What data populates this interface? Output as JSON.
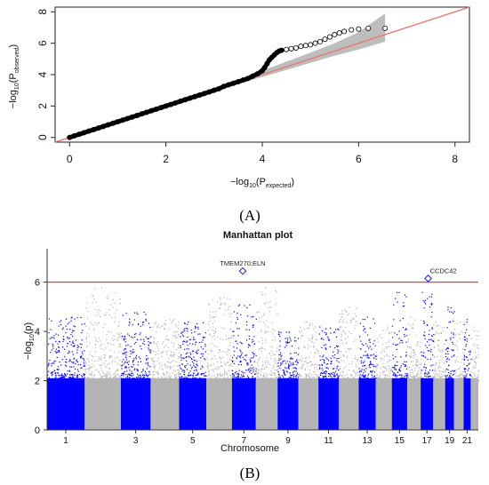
{
  "chart_data": [
    {
      "type": "scatter",
      "panel": "(A)",
      "xlabel_main": "−log",
      "xlabel_sub10": "10",
      "xlabel_paren_open": "(P",
      "xlabel_subscript": "expected",
      "xlabel_paren_close": ")",
      "ylabel_main": "−log",
      "ylabel_sub10": "10",
      "ylabel_paren_open": "(P",
      "ylabel_subscript": "observed",
      "ylabel_paren_close": ")",
      "xlim": [
        -0.3,
        8.3
      ],
      "ylim": [
        -0.3,
        8.3
      ],
      "xticks": [
        0,
        2,
        4,
        6,
        8
      ],
      "yticks": [
        0,
        2,
        4,
        6,
        8
      ],
      "reference_line": {
        "slope": 1,
        "intercept": 0,
        "color": "#f07070"
      },
      "confidence_band_color": "#bdbdbd",
      "points": [
        [
          0.0,
          0.0
        ],
        [
          0.1,
          0.1
        ],
        [
          0.2,
          0.2
        ],
        [
          0.3,
          0.3
        ],
        [
          0.4,
          0.4
        ],
        [
          0.5,
          0.5
        ],
        [
          0.6,
          0.6
        ],
        [
          0.7,
          0.7
        ],
        [
          0.8,
          0.8
        ],
        [
          0.9,
          0.9
        ],
        [
          1.0,
          1.0
        ],
        [
          1.1,
          1.1
        ],
        [
          1.2,
          1.2
        ],
        [
          1.3,
          1.3
        ],
        [
          1.4,
          1.4
        ],
        [
          1.5,
          1.5
        ],
        [
          1.6,
          1.6
        ],
        [
          1.7,
          1.7
        ],
        [
          1.8,
          1.8
        ],
        [
          1.9,
          1.9
        ],
        [
          2.0,
          2.0
        ],
        [
          2.1,
          2.1
        ],
        [
          2.2,
          2.2
        ],
        [
          2.3,
          2.3
        ],
        [
          2.4,
          2.4
        ],
        [
          2.5,
          2.5
        ],
        [
          2.6,
          2.6
        ],
        [
          2.7,
          2.7
        ],
        [
          2.8,
          2.8
        ],
        [
          2.9,
          2.9
        ],
        [
          3.0,
          3.0
        ],
        [
          3.1,
          3.1
        ],
        [
          3.2,
          3.25
        ],
        [
          3.3,
          3.35
        ],
        [
          3.4,
          3.45
        ],
        [
          3.5,
          3.55
        ],
        [
          3.6,
          3.65
        ],
        [
          3.7,
          3.75
        ],
        [
          3.8,
          3.9
        ],
        [
          3.9,
          4.05
        ],
        [
          4.0,
          4.25
        ],
        [
          4.05,
          4.45
        ],
        [
          4.1,
          4.7
        ],
        [
          4.15,
          4.95
        ],
        [
          4.2,
          5.1
        ],
        [
          4.25,
          5.25
        ],
        [
          4.3,
          5.4
        ],
        [
          4.35,
          5.5
        ],
        [
          4.4,
          5.55
        ],
        [
          4.5,
          5.6
        ],
        [
          4.6,
          5.65
        ],
        [
          4.7,
          5.7
        ],
        [
          4.8,
          5.8
        ],
        [
          4.9,
          5.85
        ],
        [
          5.0,
          5.9
        ],
        [
          5.1,
          6.0
        ],
        [
          5.2,
          6.1
        ],
        [
          5.3,
          6.25
        ],
        [
          5.4,
          6.4
        ],
        [
          5.5,
          6.55
        ],
        [
          5.6,
          6.65
        ],
        [
          5.7,
          6.75
        ],
        [
          5.85,
          6.85
        ],
        [
          6.0,
          6.9
        ],
        [
          6.2,
          6.95
        ],
        [
          6.55,
          6.95
        ]
      ],
      "band_upper": [
        [
          3.0,
          3.05
        ],
        [
          4.0,
          4.25
        ],
        [
          5.0,
          5.4
        ],
        [
          5.5,
          6.0
        ],
        [
          6.0,
          6.7
        ],
        [
          6.55,
          7.9
        ]
      ],
      "band_lower": [
        [
          3.0,
          2.95
        ],
        [
          4.0,
          3.85
        ],
        [
          5.0,
          4.75
        ],
        [
          5.5,
          5.2
        ],
        [
          6.0,
          5.6
        ],
        [
          6.55,
          6.1
        ]
      ]
    },
    {
      "type": "manhattan",
      "panel": "(B)",
      "title": "Manhattan plot",
      "xlabel": "Chromosome",
      "ylabel_main": "−log",
      "ylabel_sub10": "10",
      "ylabel_paren": "(p)",
      "ylim": [
        0,
        7.5
      ],
      "yticks": [
        0,
        2,
        4,
        6
      ],
      "xtick_labels": [
        "1",
        "3",
        "5",
        "7",
        "9",
        "11",
        "13",
        "15",
        "17",
        "19",
        "21"
      ],
      "significance_threshold": 6,
      "threshold_color": "#ee3b3b",
      "series_colors": {
        "odd": "#0000ff",
        "even": "#b4b4b4"
      },
      "chromosomes": [
        {
          "chr": 1,
          "max": 4.6
        },
        {
          "chr": 2,
          "max": 5.8
        },
        {
          "chr": 3,
          "max": 4.8
        },
        {
          "chr": 4,
          "max": 4.5
        },
        {
          "chr": 5,
          "max": 4.4
        },
        {
          "chr": 6,
          "max": 5.4
        },
        {
          "chr": 7,
          "max": 5.1
        },
        {
          "chr": 8,
          "max": 5.8
        },
        {
          "chr": 9,
          "max": 4.0
        },
        {
          "chr": 10,
          "max": 4.4
        },
        {
          "chr": 11,
          "max": 4.2
        },
        {
          "chr": 12,
          "max": 5.0
        },
        {
          "chr": 13,
          "max": 4.6
        },
        {
          "chr": 14,
          "max": 4.2
        },
        {
          "chr": 15,
          "max": 5.6
        },
        {
          "chr": 16,
          "max": 4.6
        },
        {
          "chr": 17,
          "max": 5.6
        },
        {
          "chr": 18,
          "max": 4.4
        },
        {
          "chr": 19,
          "max": 5.0
        },
        {
          "chr": 20,
          "max": 4.4
        },
        {
          "chr": 21,
          "max": 4.5
        },
        {
          "chr": 22,
          "max": 4.2
        }
      ],
      "annotations": [
        {
          "label": "TMEM270;ELN",
          "chr": 7,
          "value": 6.45,
          "position": 0.45
        },
        {
          "label": "CCDC42",
          "chr": 17,
          "value": 6.15,
          "position": 0.6
        }
      ]
    }
  ]
}
